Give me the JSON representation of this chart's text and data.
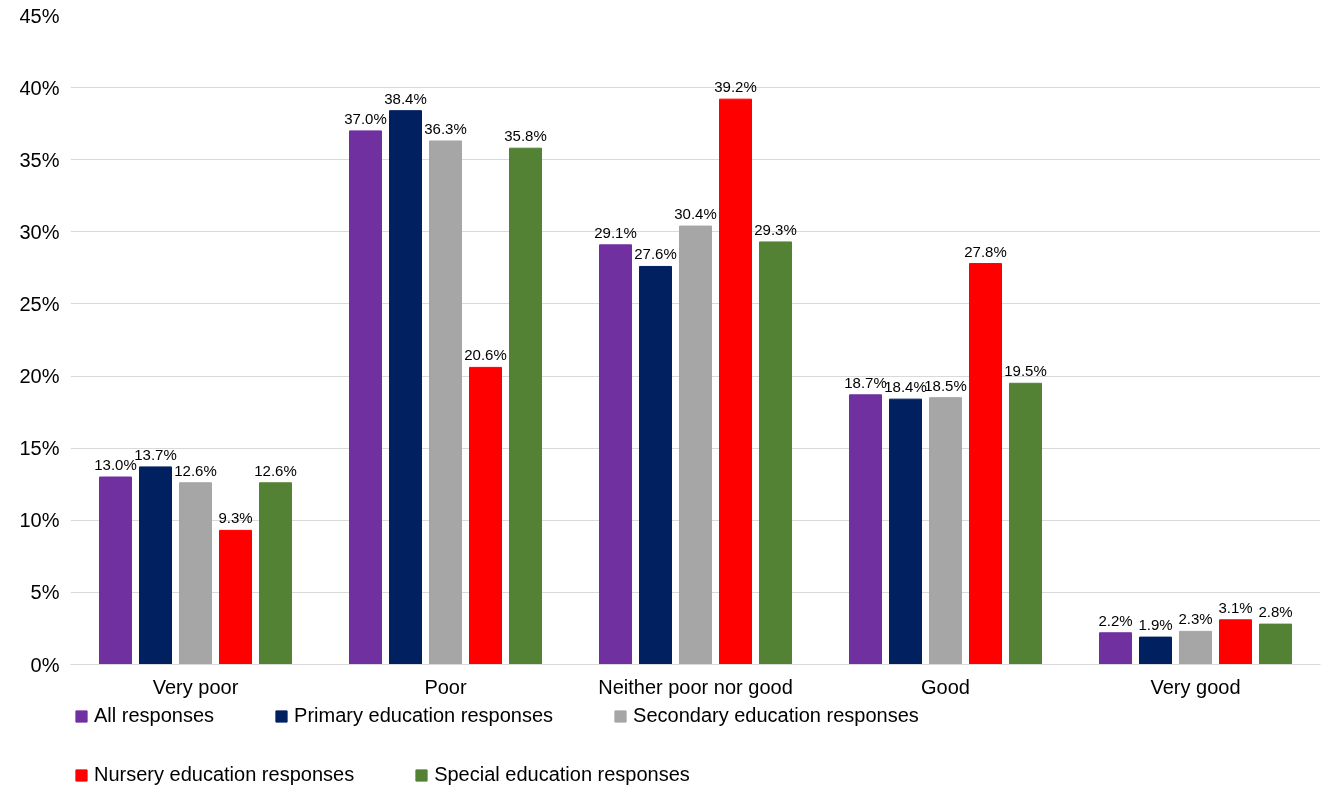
{
  "chart_data": {
    "type": "bar",
    "categories": [
      "Very poor",
      "Poor",
      "Neither poor nor good",
      "Good",
      "Very good"
    ],
    "ylim": [
      0,
      45
    ],
    "yticks": [
      {
        "value": 0,
        "label": "0%"
      },
      {
        "value": 5,
        "label": "5%"
      },
      {
        "value": 10,
        "label": "10%"
      },
      {
        "value": 15,
        "label": "15%"
      },
      {
        "value": 20,
        "label": "20%"
      },
      {
        "value": 25,
        "label": "25%"
      },
      {
        "value": 30,
        "label": "30%"
      },
      {
        "value": 35,
        "label": "35%"
      },
      {
        "value": 40,
        "label": "40%"
      },
      {
        "value": 45,
        "label": "45%"
      }
    ],
    "grid": "y",
    "legend": "bottom",
    "series": [
      {
        "name": "All responses",
        "color": "#7030a0",
        "values": [
          13.0,
          37.0,
          29.1,
          18.7,
          2.2
        ],
        "value_labels": [
          "13.0%",
          "37.0%",
          "29.1%",
          "18.7%",
          "2.2%"
        ]
      },
      {
        "name": "Primary education responses",
        "color": "#002060",
        "values": [
          13.7,
          38.4,
          27.6,
          18.4,
          1.9
        ],
        "value_labels": [
          "13.7%",
          "38.4%",
          "27.6%",
          "18.4%",
          "1.9%"
        ]
      },
      {
        "name": "Secondary education responses",
        "color": "#a6a6a6",
        "values": [
          12.6,
          36.3,
          30.4,
          18.5,
          2.3
        ],
        "value_labels": [
          "12.6%",
          "36.3%",
          "30.4%",
          "18.5%",
          "2.3%"
        ]
      },
      {
        "name": "Nursery education responses",
        "color": "#ff0000",
        "values": [
          9.3,
          20.6,
          39.2,
          27.8,
          3.1
        ],
        "value_labels": [
          "9.3%",
          "20.6%",
          "39.2%",
          "27.8%",
          "3.1%"
        ]
      },
      {
        "name": "Special education responses",
        "color": "#548235",
        "values": [
          12.6,
          35.8,
          29.3,
          19.5,
          2.8
        ],
        "value_labels": [
          "12.6%",
          "35.8%",
          "29.3%",
          "19.5%",
          "2.8%"
        ]
      }
    ]
  }
}
